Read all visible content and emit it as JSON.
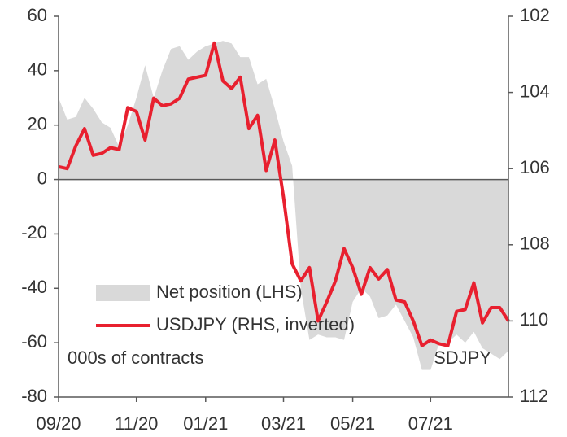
{
  "chart_data": {
    "type": "area_line",
    "categories": [
      "09/20",
      null,
      null,
      null,
      null,
      null,
      null,
      null,
      null,
      "11/20",
      null,
      null,
      null,
      null,
      null,
      null,
      null,
      "01/21",
      null,
      null,
      null,
      null,
      null,
      null,
      null,
      null,
      "03/21",
      null,
      null,
      null,
      null,
      null,
      null,
      null,
      "05/21",
      null,
      null,
      null,
      null,
      null,
      null,
      null,
      null,
      "07/21",
      null,
      null,
      null,
      null,
      null,
      null,
      null,
      null,
      null
    ],
    "series": [
      {
        "name": "Net position (LHS)",
        "type": "area",
        "color": "#d9d9d9",
        "values": [
          30,
          22,
          23,
          30,
          26,
          21,
          19,
          12,
          20,
          30,
          42,
          30,
          40,
          48,
          49,
          44,
          47,
          49,
          50,
          51,
          50,
          45,
          45,
          35,
          37,
          26,
          14,
          5,
          -40,
          -59,
          -57,
          -58,
          -58,
          -59,
          -45,
          -40,
          -43,
          -51,
          -50,
          -46,
          -52,
          -58,
          -70,
          -70,
          -60,
          -60,
          -57,
          -60,
          -56,
          -62,
          -64,
          -66,
          -63
        ]
      },
      {
        "name": "USDJPY (RHS, inverted)",
        "type": "line",
        "axis": "y2",
        "color": "#e8202f",
        "values": [
          105.95,
          106.0,
          105.4,
          104.95,
          105.65,
          105.6,
          105.45,
          105.5,
          104.4,
          104.5,
          105.25,
          104.15,
          104.35,
          104.3,
          104.15,
          103.65,
          103.6,
          103.55,
          102.7,
          103.7,
          103.9,
          103.6,
          104.95,
          104.6,
          106.05,
          105.25,
          106.75,
          108.5,
          108.95,
          108.6,
          110.0,
          109.5,
          108.95,
          108.1,
          108.6,
          109.3,
          108.6,
          108.9,
          108.65,
          109.45,
          109.5,
          110.0,
          110.65,
          110.5,
          110.6,
          110.65,
          109.75,
          109.7,
          109.0,
          110.05,
          109.65,
          109.65,
          110.0
        ]
      }
    ],
    "ylim": [
      -80,
      60
    ],
    "yticks": [
      60,
      40,
      20,
      0,
      -20,
      -40,
      -60,
      -80
    ],
    "y2lim": [
      102,
      112
    ],
    "y2ticks": [
      102,
      104,
      106,
      108,
      110,
      112
    ],
    "y2_inverted": true,
    "annotations": [
      "000s of contracts",
      "USDJPY"
    ]
  }
}
